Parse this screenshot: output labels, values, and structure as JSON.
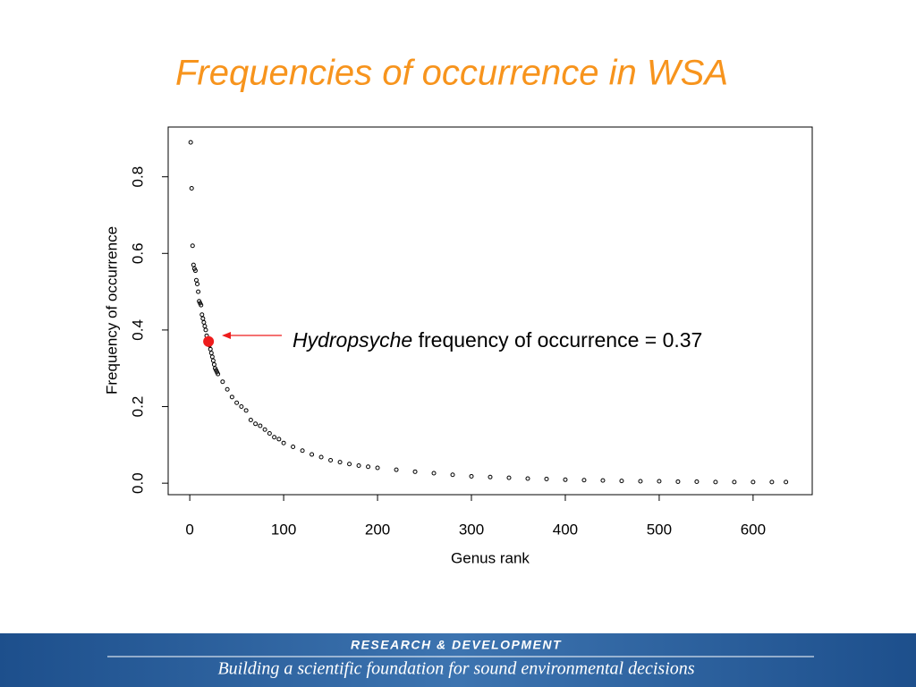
{
  "chart_data": {
    "type": "scatter",
    "title": "Frequencies of occurrence in WSA",
    "x_label": "Genus rank",
    "y_label": "Frequency of occurrence",
    "x": [
      1,
      2,
      3,
      4,
      5,
      6,
      7,
      8,
      9,
      10,
      11,
      12,
      13,
      14,
      15,
      16,
      17,
      18,
      19,
      21,
      22,
      23,
      24,
      25,
      26,
      27,
      28,
      29,
      30,
      35,
      40,
      45,
      50,
      55,
      60,
      65,
      70,
      75,
      80,
      85,
      90,
      95,
      100,
      110,
      120,
      130,
      140,
      150,
      160,
      170,
      180,
      190,
      200,
      220,
      240,
      260,
      280,
      300,
      320,
      340,
      360,
      380,
      400,
      420,
      440,
      460,
      480,
      500,
      520,
      540,
      560,
      580,
      600,
      620,
      635
    ],
    "values": [
      0.89,
      0.77,
      0.62,
      0.57,
      0.56,
      0.555,
      0.53,
      0.52,
      0.5,
      0.475,
      0.47,
      0.465,
      0.44,
      0.43,
      0.42,
      0.41,
      0.4,
      0.385,
      0.375,
      0.36,
      0.35,
      0.34,
      0.33,
      0.32,
      0.31,
      0.3,
      0.295,
      0.29,
      0.285,
      0.265,
      0.245,
      0.225,
      0.21,
      0.2,
      0.19,
      0.165,
      0.155,
      0.15,
      0.14,
      0.13,
      0.12,
      0.115,
      0.105,
      0.095,
      0.085,
      0.075,
      0.068,
      0.06,
      0.055,
      0.05,
      0.046,
      0.043,
      0.04,
      0.035,
      0.03,
      0.026,
      0.022,
      0.018,
      0.016,
      0.014,
      0.012,
      0.011,
      0.009,
      0.008,
      0.007,
      0.006,
      0.005,
      0.005,
      0.004,
      0.004,
      0.003,
      0.003,
      0.003,
      0.003,
      0.003
    ],
    "color": "#000000",
    "highlight": {
      "x": 20,
      "y": 0.37,
      "color": "#ee1c1c",
      "label_italic": "Hydropsyche",
      "label": "frequency of occurrence = 0.37"
    },
    "xlim": [
      -23,
      663
    ],
    "ylim": [
      -0.03,
      0.93
    ],
    "xticks": [
      0,
      100,
      200,
      300,
      400,
      500,
      600
    ],
    "yticks": [
      {
        "value": 0,
        "label": "0.0"
      },
      0.2,
      0.4,
      0.6,
      0.8
    ]
  },
  "footer": {
    "heading": "RESEARCH &  DEVELOPMENT",
    "tagline": "Building a scientific foundation for sound environmental decisions"
  }
}
